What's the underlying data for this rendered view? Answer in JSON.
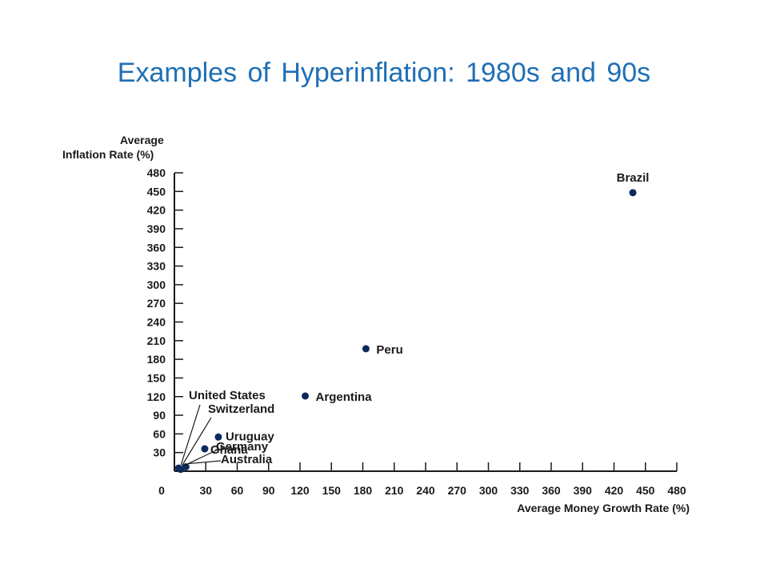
{
  "title": "Examples of Hyperinflation: 1980s and 90s",
  "chart_data": {
    "type": "scatter",
    "title": "Examples of Hyperinflation: 1980s and 90s",
    "xlabel": "Average Money Growth Rate (%)",
    "ylabel_line1": "Average",
    "ylabel_line2": "Inflation Rate (%)",
    "xlim": [
      0,
      480
    ],
    "ylim": [
      0,
      480
    ],
    "x_ticks": [
      0,
      30,
      60,
      90,
      120,
      150,
      180,
      210,
      240,
      270,
      300,
      330,
      360,
      390,
      420,
      450,
      480
    ],
    "y_ticks": [
      30,
      60,
      90,
      120,
      150,
      180,
      210,
      240,
      270,
      300,
      330,
      360,
      390,
      420,
      450,
      480
    ],
    "point_color": "#0d2a5e",
    "points": [
      {
        "name": "Brazil",
        "x": 438,
        "y": 448
      },
      {
        "name": "Peru",
        "x": 183,
        "y": 197
      },
      {
        "name": "Argentina",
        "x": 125,
        "y": 121
      },
      {
        "name": "Uruguay",
        "x": 42,
        "y": 55
      },
      {
        "name": "Ghana",
        "x": 29,
        "y": 36
      },
      {
        "name": "United States",
        "x": 4,
        "y": 5
      },
      {
        "name": "Switzerland",
        "x": 5,
        "y": 4
      },
      {
        "name": "Germany",
        "x": 6,
        "y": 3
      },
      {
        "name": "Australia",
        "x": 11,
        "y": 7
      }
    ]
  }
}
